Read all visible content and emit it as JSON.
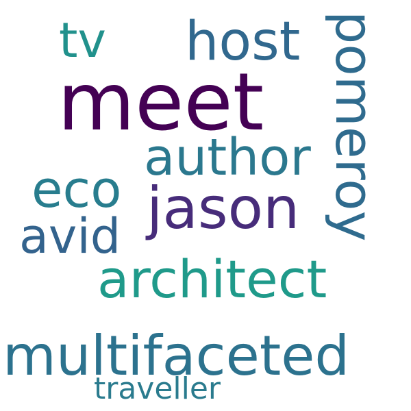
{
  "cloud": {
    "words": {
      "meet": {
        "text": "meet",
        "color": "#440154"
      },
      "host": {
        "text": "host",
        "color": "#31688e"
      },
      "tv": {
        "text": "tv",
        "color": "#21918c"
      },
      "pomeroy": {
        "text": "pomeroy",
        "color": "#2f6b8e"
      },
      "author": {
        "text": "author",
        "color": "#2b788e"
      },
      "eco": {
        "text": "eco",
        "color": "#287d8e"
      },
      "jason": {
        "text": "jason",
        "color": "#472c7a"
      },
      "avid": {
        "text": "avid",
        "color": "#33638d"
      },
      "architect": {
        "text": "architect",
        "color": "#1f9a8a"
      },
      "multifaceted": {
        "text": "multifaceted",
        "color": "#2c728e"
      },
      "traveller": {
        "text": "traveller",
        "color": "#2a7b8e"
      }
    }
  }
}
